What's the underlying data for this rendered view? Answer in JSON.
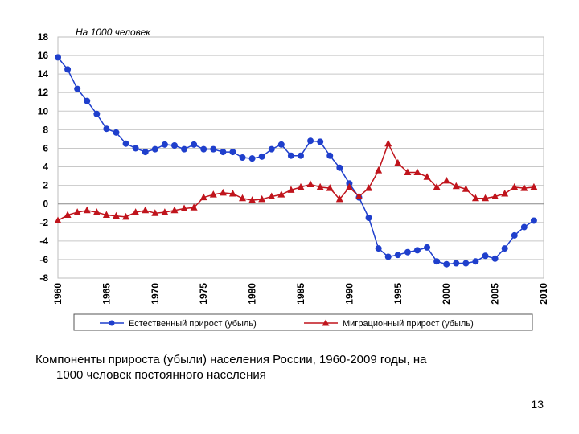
{
  "chart_data": {
    "type": "line",
    "unit_label": "На 1000 человек",
    "x": [
      1960,
      1961,
      1962,
      1963,
      1964,
      1965,
      1966,
      1967,
      1968,
      1969,
      1970,
      1971,
      1972,
      1973,
      1974,
      1975,
      1976,
      1977,
      1978,
      1979,
      1980,
      1981,
      1982,
      1983,
      1984,
      1985,
      1986,
      1987,
      1988,
      1989,
      1990,
      1991,
      1992,
      1993,
      1994,
      1995,
      1996,
      1997,
      1998,
      1999,
      2000,
      2001,
      2002,
      2003,
      2004,
      2005,
      2006,
      2007,
      2008,
      2009
    ],
    "xticks": [
      "1960",
      "1965",
      "1970",
      "1975",
      "1980",
      "1985",
      "1990",
      "1995",
      "2000",
      "2005",
      "2010"
    ],
    "xlim": [
      1960,
      2010
    ],
    "yticks": [
      "18",
      "16",
      "14",
      "12",
      "10",
      "8",
      "6",
      "4",
      "2",
      "0",
      "-2",
      "-4",
      "-6",
      "-8"
    ],
    "ylim": [
      -8,
      18
    ],
    "grid": true,
    "legend_position": "bottom",
    "series": [
      {
        "name": "Естественный прирост (убыль)",
        "color": "#1f3fcc",
        "marker": "circle",
        "values": [
          15.8,
          14.5,
          12.4,
          11.1,
          9.7,
          8.1,
          7.7,
          6.5,
          6.0,
          5.6,
          5.9,
          6.4,
          6.3,
          5.9,
          6.4,
          5.9,
          5.9,
          5.6,
          5.6,
          5.0,
          4.9,
          5.1,
          5.9,
          6.4,
          5.2,
          5.2,
          6.8,
          6.7,
          5.2,
          3.9,
          2.2,
          0.7,
          -1.5,
          -4.8,
          -5.7,
          -5.5,
          -5.2,
          -5.0,
          -4.7,
          -6.2,
          -6.5,
          -6.4,
          -6.4,
          -6.2,
          -5.6,
          -5.9,
          -4.8,
          -3.4,
          -2.5,
          -1.8
        ]
      },
      {
        "name": "Миграционный прирост (убыль)",
        "color": "#c0141c",
        "marker": "triangle",
        "values": [
          -1.8,
          -1.2,
          -0.9,
          -0.7,
          -0.9,
          -1.2,
          -1.3,
          -1.4,
          -0.9,
          -0.7,
          -1.0,
          -0.9,
          -0.7,
          -0.5,
          -0.4,
          0.7,
          1.0,
          1.2,
          1.1,
          0.6,
          0.4,
          0.5,
          0.8,
          1.0,
          1.5,
          1.8,
          2.1,
          1.8,
          1.7,
          0.5,
          1.8,
          0.8,
          1.7,
          3.6,
          6.5,
          4.4,
          3.4,
          3.4,
          2.9,
          1.8,
          2.5,
          1.9,
          1.6,
          0.6,
          0.6,
          0.8,
          1.1,
          1.8,
          1.7,
          1.8
        ]
      }
    ]
  },
  "caption": {
    "line1": "Компоненты прироста (убыли) населения России, 1960-2009 годы, на",
    "line2": "1000 человек постоянного населения"
  },
  "page_number": "13"
}
